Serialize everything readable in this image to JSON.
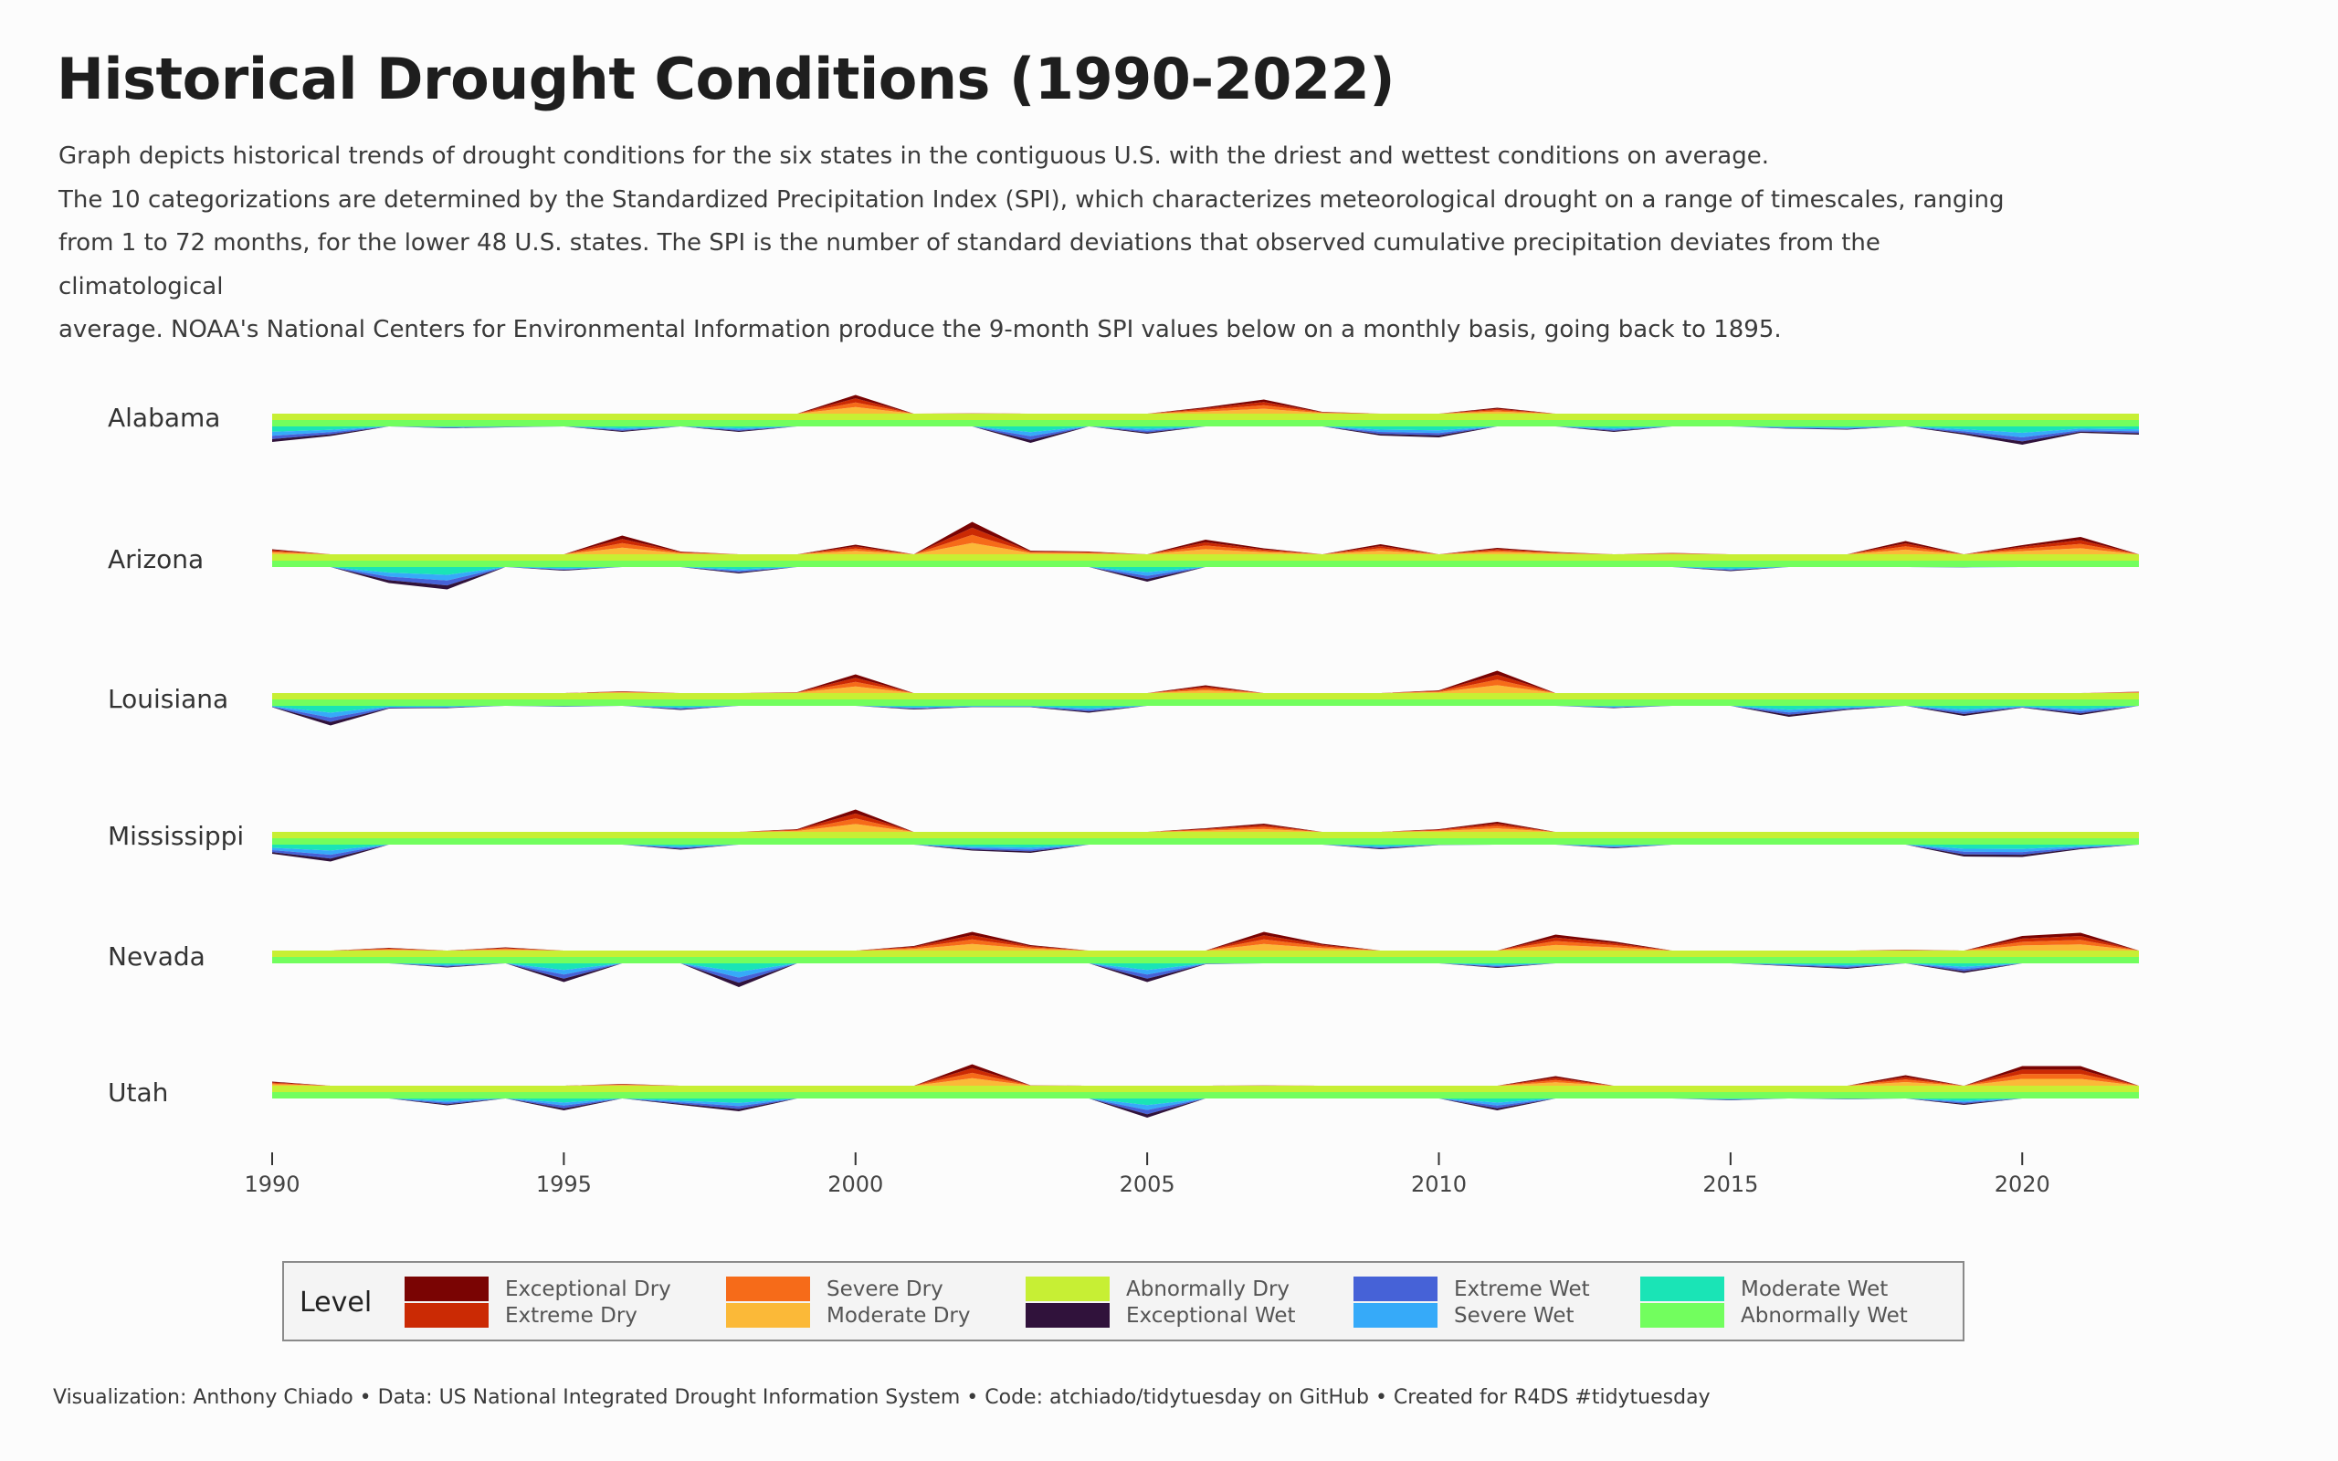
{
  "title": "Historical Drought Conditions (1990-2022)",
  "subtitle": [
    "Graph depicts historical trends of drought conditions for the six states in the contiguous U.S. with the driest and wettest conditions on average.",
    "The 10 categorizations are determined by the Standardized Precipitation Index (SPI), which characterizes meteorological drought on a range of timescales, ranging",
    "from 1 to 72 months, for the lower 48 U.S. states. The SPI is the number of standard deviations that observed cumulative precipitation deviates from the climatological",
    "average. NOAA's National Centers for Environmental Information produce the 9-month SPI values below on a monthly basis, going back to 1895."
  ],
  "legend": {
    "title": "Level",
    "items": [
      {
        "label": "Exceptional Dry",
        "color": "#7a0403"
      },
      {
        "label": "Extreme Dry",
        "color": "#cb2a04"
      },
      {
        "label": "Severe Dry",
        "color": "#f66b19"
      },
      {
        "label": "Moderate Dry",
        "color": "#fbb938"
      },
      {
        "label": "Abnormally Dry",
        "color": "#c7ef34"
      },
      {
        "label": "Exceptional Wet",
        "color": "#30123b"
      },
      {
        "label": "Extreme Wet",
        "color": "#4662d7"
      },
      {
        "label": "Severe Wet",
        "color": "#36aaf9"
      },
      {
        "label": "Moderate Wet",
        "color": "#1ae4b6"
      },
      {
        "label": "Abnormally Wet",
        "color": "#72fe5e"
      }
    ]
  },
  "caption": "Visualization: Anthony Chiado  •  Data: US National Integrated Drought Information System  •  Code: atchiado/tidytuesday on GitHub  • Created for R4DS #tidytuesday",
  "chart_data": {
    "type": "area",
    "subtype": "stacked ridgeline (dry above baseline, wet below)",
    "x": [
      1990,
      1991,
      1992,
      1993,
      1994,
      1995,
      1996,
      1997,
      1998,
      1999,
      2000,
      2001,
      2002,
      2003,
      2004,
      2005,
      2006,
      2007,
      2008,
      2009,
      2010,
      2011,
      2012,
      2013,
      2014,
      2015,
      2016,
      2017,
      2018,
      2019,
      2020,
      2021,
      2022
    ],
    "x_ticks": [
      "1990",
      "1995",
      "2000",
      "2005",
      "2010",
      "2015",
      "2020"
    ],
    "xlim": [
      1990,
      2022
    ],
    "dry_levels": [
      "Abnormally Dry",
      "Moderate Dry",
      "Severe Dry",
      "Extreme Dry",
      "Exceptional Dry"
    ],
    "wet_levels": [
      "Abnormally Wet",
      "Moderate Wet",
      "Severe Wet",
      "Extreme Wet",
      "Exceptional Wet"
    ],
    "value_unit": "relative drought/wetness intensity (0-10)",
    "states": [
      {
        "name": "Alabama",
        "dry": [
          0.3,
          0.2,
          0.3,
          0.3,
          0.1,
          0.3,
          0.1,
          0.1,
          0.1,
          0.6,
          5.5,
          0.6,
          1.5,
          0.1,
          0.9,
          0.2,
          2.8,
          4.5,
          1.8,
          0.1,
          0.8,
          2.7,
          0.6,
          0.1,
          0.1,
          0.5,
          0.6,
          0.5,
          0.1,
          0.2,
          0.1,
          0.1,
          0.1
        ],
        "wet": [
          4.8,
          3.5,
          0.4,
          1.8,
          1.6,
          0.9,
          2.6,
          1.4,
          2.6,
          0.3,
          0.1,
          1.4,
          0.9,
          5.0,
          1.2,
          3.0,
          0.1,
          0.1,
          0.1,
          3.4,
          3.8,
          0.2,
          0.2,
          2.6,
          1.4,
          0.3,
          1.9,
          2.1,
          1.3,
          3.2,
          5.4,
          2.8,
          3.2
        ]
      },
      {
        "name": "Arizona",
        "dry": [
          2.5,
          0.3,
          0.2,
          0.3,
          1.4,
          1.1,
          5.5,
          2.0,
          0.4,
          1.4,
          3.5,
          0.5,
          8.5,
          2.2,
          2.0,
          0.6,
          4.6,
          2.7,
          0.5,
          3.6,
          0.5,
          2.8,
          1.9,
          0.9,
          1.7,
          0.1,
          0.7,
          1.1,
          4.3,
          0.1,
          3.4,
          5.2,
          0.5
        ],
        "wet": [
          0.6,
          1.0,
          4.9,
          6.3,
          0.2,
          2.2,
          0.2,
          0.5,
          2.8,
          0.1,
          0.1,
          0.1,
          0.1,
          0.1,
          0.6,
          4.6,
          0.1,
          0.1,
          0.1,
          0.1,
          0.5,
          0.1,
          0.2,
          0.1,
          0.5,
          2.3,
          0.3,
          0.8,
          0.1,
          1.5,
          0.5,
          0.1,
          0.1
        ]
      },
      {
        "name": "Louisiana",
        "dry": [
          0.7,
          0.1,
          0.1,
          0.1,
          0.4,
          0.2,
          1.8,
          0.1,
          0.3,
          1.6,
          5.5,
          0.2,
          0.6,
          0.3,
          0.2,
          1.3,
          3.1,
          0.1,
          0.7,
          1.2,
          2.0,
          6.3,
          0.4,
          0.2,
          0.6,
          0.1,
          0.1,
          0.1,
          0.5,
          0.1,
          0.2,
          0.1,
          1.7
        ],
        "wet": [
          1.7,
          5.7,
          2.0,
          1.9,
          0.1,
          1.6,
          0.1,
          2.3,
          1.2,
          1.1,
          0.1,
          2.2,
          1.7,
          1.7,
          2.9,
          0.3,
          0.1,
          0.5,
          0.2,
          1.1,
          1.4,
          0.1,
          1.4,
          1.9,
          0.1,
          1.0,
          3.8,
          2.3,
          1.1,
          3.6,
          1.8,
          3.4,
          0.4
        ]
      },
      {
        "name": "Mississippi",
        "dry": [
          0.4,
          0.2,
          0.6,
          0.3,
          0.2,
          0.4,
          0.6,
          0.2,
          0.6,
          2.0,
          6.3,
          0.6,
          0.6,
          0.6,
          0.2,
          0.4,
          2.2,
          3.2,
          0.6,
          0.2,
          2.0,
          3.6,
          0.2,
          0.1,
          0.1,
          0.2,
          0.4,
          1.2,
          0.1,
          0.1,
          0.1,
          0.1,
          0.1
        ],
        "wet": [
          3.4,
          5.1,
          0.1,
          0.9,
          1.2,
          0.6,
          0.1,
          2.5,
          0.8,
          0.4,
          0.1,
          0.8,
          2.7,
          3.2,
          1.3,
          0.9,
          0.1,
          0.1,
          0.3,
          2.4,
          1.5,
          0.1,
          0.6,
          2.2,
          0.4,
          0.1,
          1.1,
          0.7,
          1.3,
          4.0,
          4.1,
          2.4,
          0.8
        ]
      },
      {
        "name": "Nevada",
        "dry": [
          1.3,
          1.3,
          2.0,
          0.4,
          2.1,
          0.1,
          1.4,
          0.1,
          0.1,
          0.5,
          1.0,
          2.4,
          5.5,
          2.6,
          0.8,
          0.1,
          0.1,
          5.5,
          2.9,
          1.3,
          0.1,
          0.1,
          4.9,
          3.4,
          0.9,
          0.5,
          0.1,
          0.1,
          1.6,
          0.1,
          4.6,
          5.3,
          1.4
        ],
        "wet": [
          0.1,
          0.3,
          0.6,
          2.3,
          0.1,
          5.5,
          1.2,
          1.2,
          6.6,
          0.1,
          0.1,
          0.1,
          0.1,
          0.1,
          0.1,
          5.5,
          1.6,
          0.1,
          0.1,
          0.2,
          0.5,
          2.4,
          0.1,
          0.1,
          0.1,
          0.6,
          2.0,
          2.6,
          0.1,
          3.5,
          0.1,
          0.1,
          0.1
        ]
      },
      {
        "name": "Utah",
        "dry": [
          2.3,
          0.5,
          0.5,
          0.1,
          1.4,
          0.1,
          1.8,
          0.1,
          0.1,
          0.1,
          1.2,
          1.1,
          6.1,
          1.5,
          0.5,
          0.1,
          0.5,
          1.5,
          1.4,
          1.2,
          0.1,
          0.1,
          3.5,
          0.6,
          0.3,
          0.1,
          0.1,
          0.7,
          3.7,
          0.1,
          5.7,
          5.7,
          0.1
        ],
        "wet": [
          0.1,
          0.5,
          1.1,
          2.9,
          0.1,
          4.0,
          0.1,
          2.8,
          4.2,
          0.2,
          0.1,
          0.4,
          0.1,
          0.2,
          0.8,
          5.6,
          0.6,
          0.4,
          0.1,
          0.3,
          1.1,
          4.0,
          0.1,
          0.4,
          0.7,
          1.8,
          0.9,
          1.6,
          0.1,
          2.8,
          0.1,
          0.1,
          0.5
        ]
      }
    ]
  }
}
